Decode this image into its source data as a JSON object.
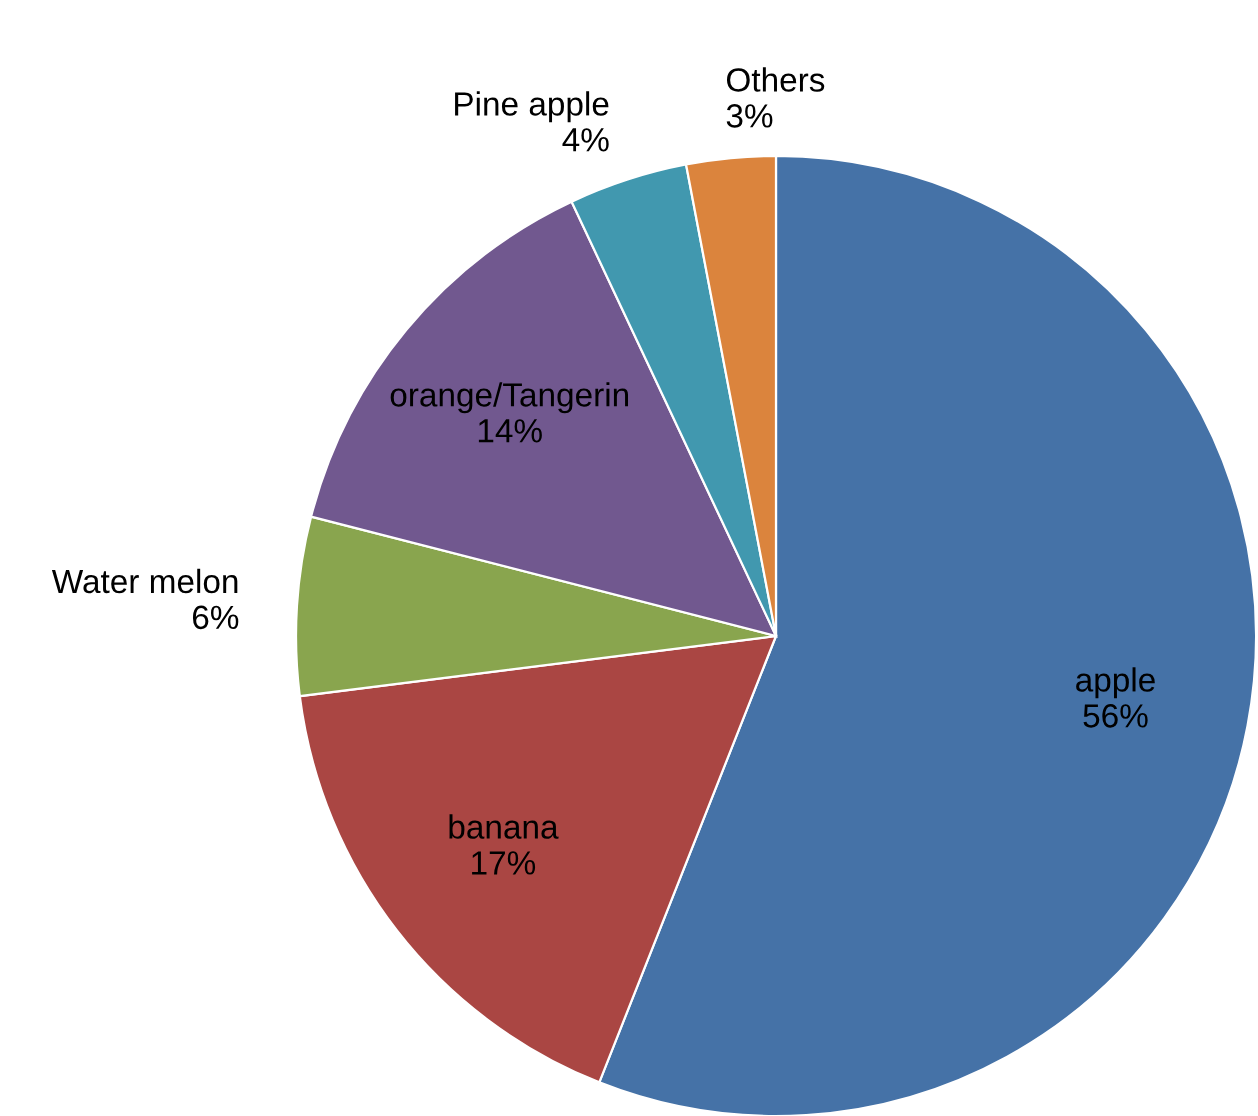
{
  "chart_data": {
    "type": "pie",
    "categories": [
      "apple",
      "banana",
      "Water melon",
      "orange/Tangerin",
      "Pine apple",
      "Others"
    ],
    "values": [
      56,
      17,
      6,
      14,
      4,
      3
    ],
    "colors": [
      "#4572a7",
      "#aa4643",
      "#89a54e",
      "#71588f",
      "#4198af",
      "#db843d"
    ],
    "value_labels": [
      "56%",
      "17%",
      "6%",
      "14%",
      "4%",
      "3%"
    ],
    "legend": false
  }
}
